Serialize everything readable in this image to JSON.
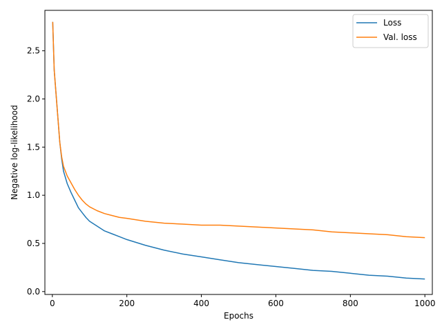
{
  "chart_data": {
    "type": "line",
    "title": "",
    "xlabel": "Epochs",
    "ylabel": "Negative log-likelihood",
    "xlim": [
      -20,
      1020
    ],
    "ylim": [
      -0.03,
      2.92
    ],
    "xticks": [
      0,
      200,
      400,
      600,
      800,
      1000
    ],
    "yticks": [
      0.0,
      0.5,
      1.0,
      1.5,
      2.0,
      2.5
    ],
    "xtick_labels": [
      "0",
      "200",
      "400",
      "600",
      "800",
      "1000"
    ],
    "ytick_labels": [
      "0.0",
      "0.5",
      "1.0",
      "1.5",
      "2.0",
      "2.5"
    ],
    "grid": false,
    "legend_position": "top-right",
    "series": [
      {
        "name": "Loss",
        "color": "#1f77b4",
        "x": [
          1,
          5,
          10,
          15,
          20,
          25,
          30,
          40,
          50,
          60,
          70,
          80,
          90,
          100,
          120,
          140,
          160,
          180,
          200,
          250,
          300,
          350,
          400,
          450,
          500,
          550,
          600,
          650,
          700,
          750,
          800,
          850,
          900,
          950,
          1000
        ],
        "y": [
          2.8,
          2.3,
          2.05,
          1.8,
          1.55,
          1.38,
          1.25,
          1.12,
          1.03,
          0.95,
          0.87,
          0.82,
          0.77,
          0.73,
          0.68,
          0.63,
          0.6,
          0.57,
          0.54,
          0.48,
          0.43,
          0.39,
          0.36,
          0.33,
          0.3,
          0.28,
          0.26,
          0.24,
          0.22,
          0.21,
          0.19,
          0.17,
          0.16,
          0.14,
          0.13
        ]
      },
      {
        "name": "Val. loss",
        "color": "#ff7f0e",
        "x": [
          1,
          5,
          10,
          15,
          20,
          25,
          30,
          40,
          50,
          60,
          70,
          80,
          90,
          100,
          120,
          140,
          160,
          180,
          200,
          250,
          300,
          350,
          400,
          450,
          500,
          550,
          600,
          650,
          700,
          750,
          800,
          850,
          900,
          950,
          1000
        ],
        "y": [
          2.8,
          2.3,
          2.05,
          1.8,
          1.55,
          1.4,
          1.3,
          1.2,
          1.13,
          1.06,
          1.0,
          0.95,
          0.91,
          0.88,
          0.84,
          0.81,
          0.79,
          0.77,
          0.76,
          0.73,
          0.71,
          0.7,
          0.69,
          0.69,
          0.68,
          0.67,
          0.66,
          0.65,
          0.64,
          0.62,
          0.61,
          0.6,
          0.59,
          0.57,
          0.56
        ]
      }
    ]
  }
}
